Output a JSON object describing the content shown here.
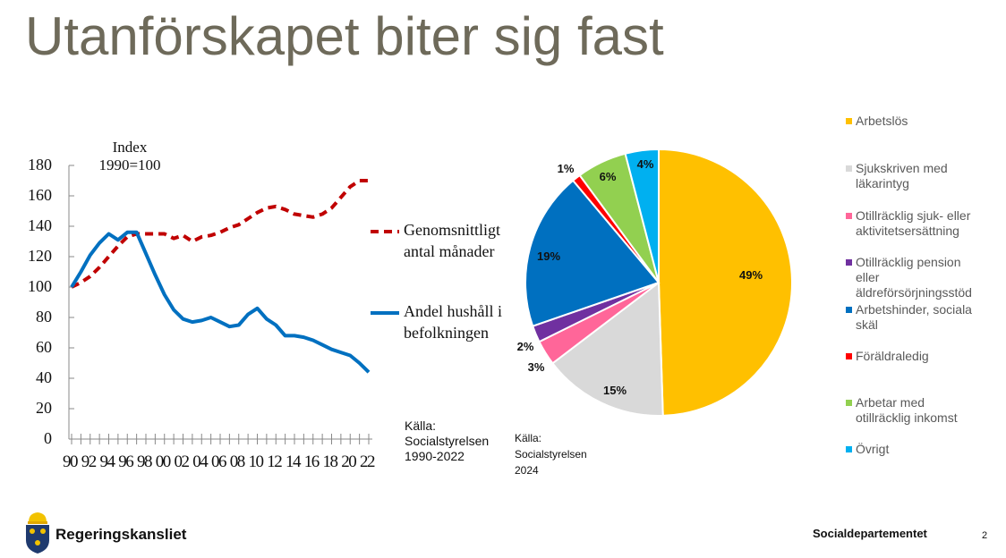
{
  "title": "Utanförskapet biter sig fast",
  "chart_data": [
    {
      "type": "line",
      "index_label": [
        "Index",
        "1990=100"
      ],
      "ylim": [
        0,
        180
      ],
      "yticks": [
        "0",
        "20",
        "40",
        "60",
        "80",
        "100",
        "120",
        "140",
        "160",
        "180"
      ],
      "xtick_labels": [
        "90",
        "92",
        "94",
        "96",
        "98",
        "00",
        "02",
        "04",
        "06",
        "08",
        "10",
        "12",
        "14",
        "16",
        "18",
        "20",
        "22"
      ],
      "x": [
        1990,
        1991,
        1992,
        1993,
        1994,
        1995,
        1996,
        1997,
        1998,
        1999,
        2000,
        2001,
        2002,
        2003,
        2004,
        2005,
        2006,
        2007,
        2008,
        2009,
        2010,
        2011,
        2012,
        2013,
        2014,
        2015,
        2016,
        2017,
        2018,
        2019,
        2020,
        2021,
        2022
      ],
      "series": [
        {
          "name": "Genomsnittligt antal månader",
          "label_lines": [
            "Genomsnittligt",
            "antal månader"
          ],
          "color": "#c00000",
          "style": "dashed",
          "values": [
            100,
            103,
            107,
            113,
            120,
            127,
            133,
            135,
            135,
            135,
            135,
            132,
            134,
            130,
            133,
            134,
            136,
            139,
            141,
            145,
            149,
            152,
            153,
            151,
            148,
            147,
            146,
            148,
            152,
            159,
            166,
            170,
            170
          ]
        },
        {
          "name": "Andel hushåll i befolkningen",
          "label_lines": [
            "Andel hushåll i",
            "befolkningen"
          ],
          "color": "#0070c0",
          "style": "solid",
          "values": [
            100,
            110,
            121,
            129,
            135,
            131,
            136,
            136,
            122,
            108,
            95,
            85,
            79,
            77,
            78,
            80,
            77,
            74,
            75,
            82,
            86,
            79,
            75,
            68,
            68,
            67,
            65,
            62,
            59,
            57,
            55,
            50,
            44
          ]
        }
      ],
      "source": [
        "Källa:",
        "Socialstyrelsen",
        "1990-2022"
      ]
    },
    {
      "type": "pie",
      "slices": [
        {
          "label": "Arbetslös",
          "value": 49,
          "text": "49%",
          "color": "#ffc000"
        },
        {
          "label": "Sjukskriven med läkarintyg",
          "value": 15,
          "text": "15%",
          "color": "#d9d9d9"
        },
        {
          "label": "Otillräcklig sjuk- eller aktivitetsersättning",
          "value": 3,
          "text": "3%",
          "color": "#ff6699"
        },
        {
          "label": "Otillräcklig pension eller äldreförsörjningsstöd",
          "value": 2,
          "text": "2%",
          "color": "#7030a0"
        },
        {
          "label": "Arbetshinder, sociala skäl",
          "value": 19,
          "text": "19%",
          "color": "#0070c0"
        },
        {
          "label": "Föräldraledig",
          "value": 1,
          "text": "1%",
          "color": "#ff0000"
        },
        {
          "label": "Arbetar med otillräcklig inkomst",
          "value": 6,
          "text": "6%",
          "color": "#92d050"
        },
        {
          "label": "Övrigt",
          "value": 4,
          "text": "4%",
          "color": "#00b0f0"
        }
      ],
      "source": [
        "Källa:",
        "Socialstyrelsen",
        "2024"
      ]
    }
  ],
  "footer": {
    "brand": "Regeringskansliet",
    "department": "Socialdepartementet",
    "page": "2"
  }
}
